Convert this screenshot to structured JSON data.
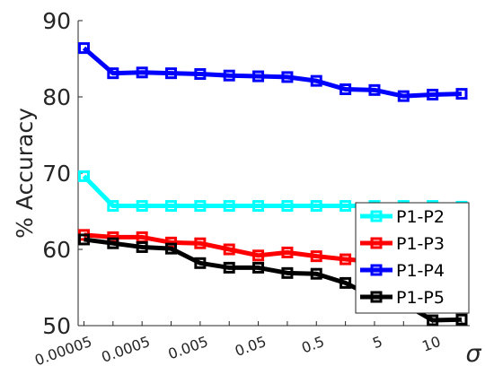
{
  "chart_data": {
    "type": "line",
    "x_tick_labels": [
      "0.00005",
      "0.0005",
      "0.005",
      "0.05",
      "0.5",
      "5",
      "10"
    ],
    "x_points": 14,
    "xlabel": "σ",
    "ylabel": "% Accuracy",
    "ylim": [
      50,
      90
    ],
    "yticks": [
      "50",
      "60",
      "70",
      "80",
      "90"
    ],
    "grid": false,
    "legend_position": "bottom-right",
    "series": [
      {
        "name": "P1-P2",
        "color": "#00ffff",
        "values": [
          69.6,
          65.7,
          65.7,
          65.7,
          65.7,
          65.7,
          65.7,
          65.7,
          65.7,
          65.7,
          65.7,
          65.7,
          65.7,
          65.6
        ]
      },
      {
        "name": "P1-P3",
        "color": "#ff0000",
        "values": [
          61.9,
          61.6,
          61.6,
          60.9,
          60.8,
          60.0,
          59.2,
          59.6,
          59.1,
          58.7,
          58.4,
          58.0,
          57.3,
          55.8
        ]
      },
      {
        "name": "P1-P4",
        "color": "#0000ff",
        "values": [
          86.4,
          83.1,
          83.2,
          83.1,
          83.0,
          82.8,
          82.7,
          82.6,
          82.1,
          81.0,
          80.9,
          80.1,
          80.3,
          80.4
        ]
      },
      {
        "name": "P1-P5",
        "color": "#000000",
        "values": [
          61.3,
          60.8,
          60.3,
          60.1,
          58.2,
          57.6,
          57.6,
          56.9,
          56.8,
          55.6,
          53.7,
          52.9,
          50.7,
          50.8
        ]
      }
    ]
  }
}
